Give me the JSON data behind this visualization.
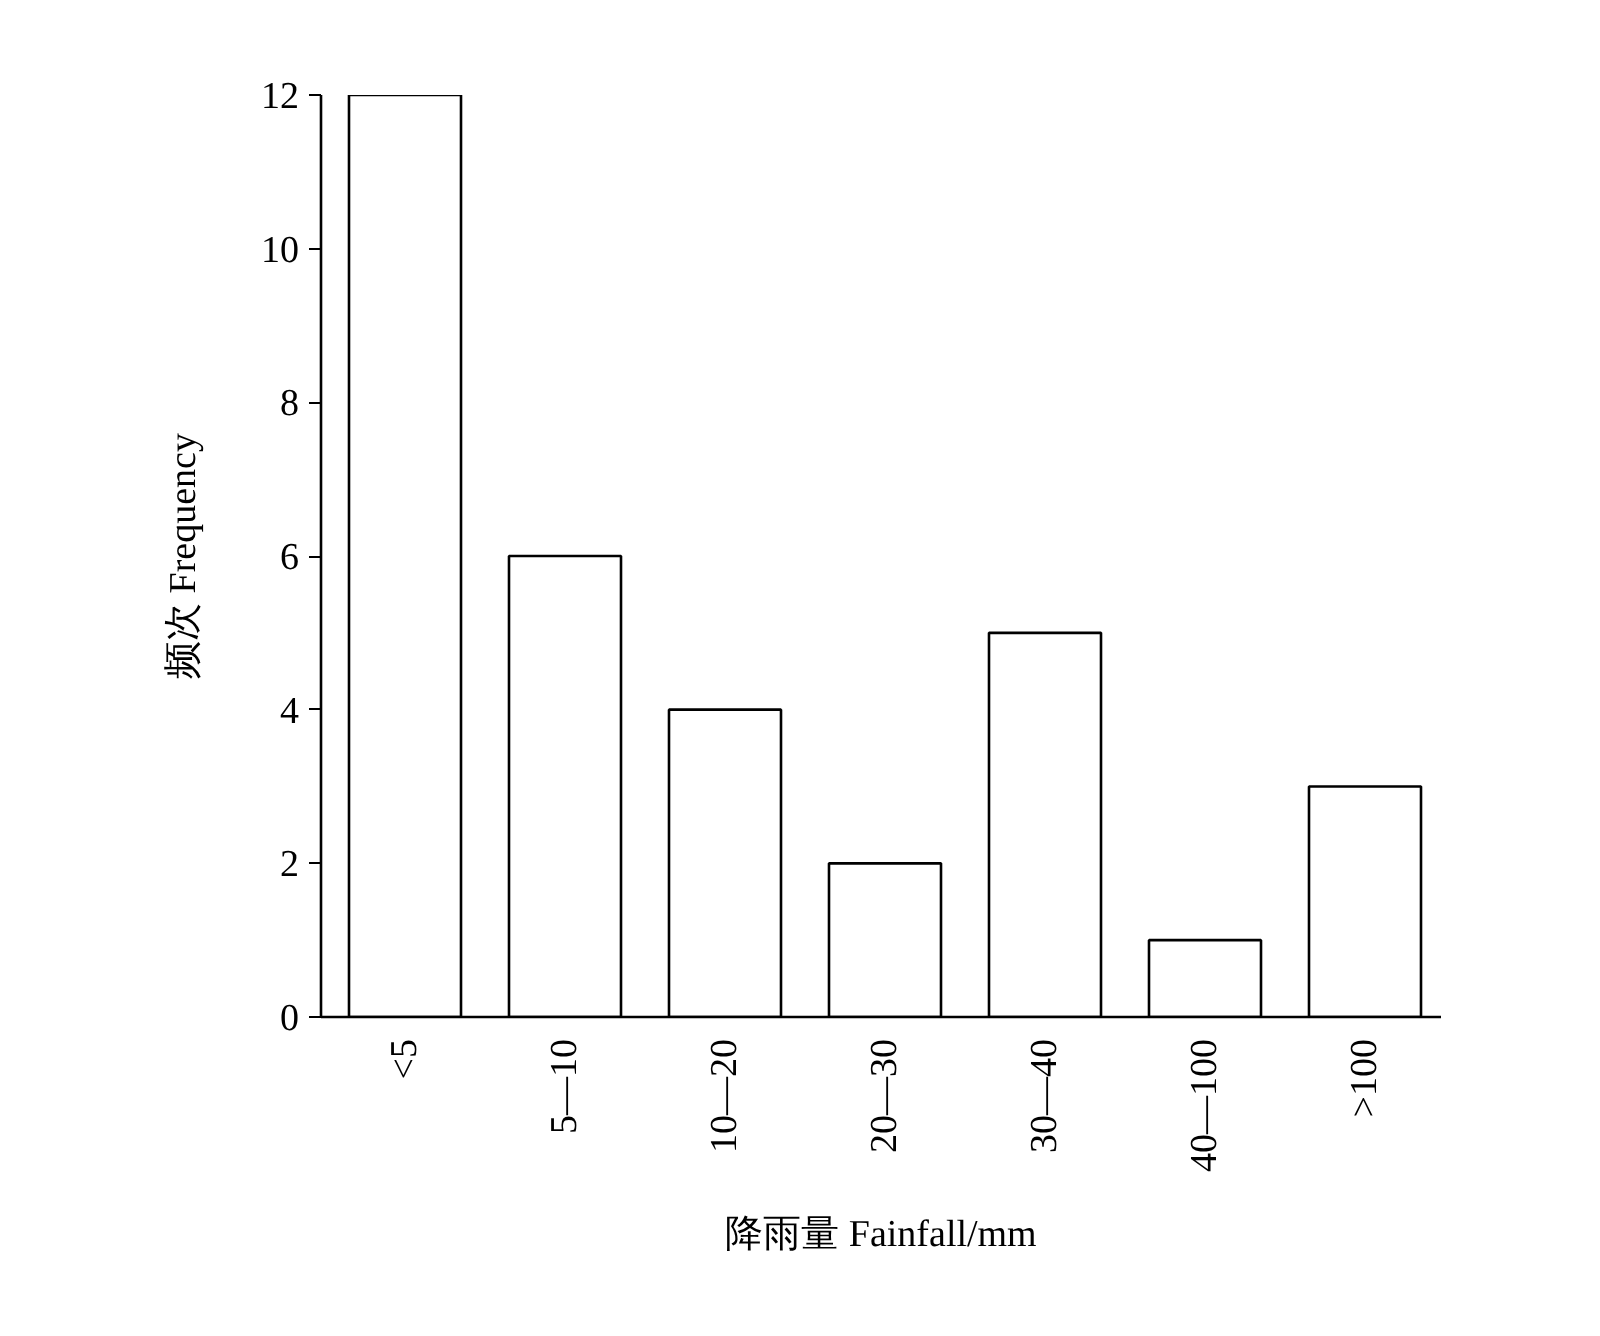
{
  "chart_data": {
    "type": "bar",
    "xlabel": "降雨量 Fainfall/mm",
    "ylabel": "频次 Frequency",
    "categories": [
      "<5",
      "5—10",
      "10—20",
      "20—30",
      "30—40",
      "40—100",
      ">100"
    ],
    "values": [
      12,
      6,
      4,
      2,
      5,
      1,
      3
    ],
    "color": "#ffffff",
    "ylim": [
      0,
      12
    ],
    "yticks": [
      0,
      2,
      4,
      6,
      8,
      10,
      12
    ],
    "grid": false
  }
}
